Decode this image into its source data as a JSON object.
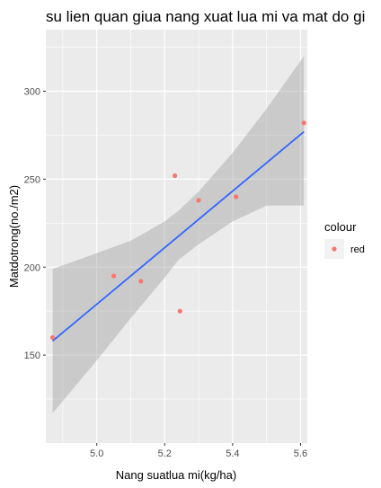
{
  "chart_data": {
    "type": "scatter",
    "title": "su lien quan giua nang xuat lua mi va mat do gi",
    "xlabel": "Nang suatlua mi(kg/ha)",
    "ylabel": "Matdotrong(no./m2)",
    "xlim": [
      4.85,
      5.62
    ],
    "ylim": [
      100,
      335
    ],
    "x_ticks": [
      5.0,
      5.2,
      5.4,
      5.6
    ],
    "x_tick_labels": [
      "5.0",
      "5.2",
      "5.4",
      "5.6"
    ],
    "y_ticks": [
      150,
      200,
      250,
      300
    ],
    "y_tick_labels": [
      "150",
      "200",
      "250",
      "300"
    ],
    "grid": true,
    "points": [
      {
        "x": 4.87,
        "y": 160
      },
      {
        "x": 5.05,
        "y": 195
      },
      {
        "x": 5.13,
        "y": 192
      },
      {
        "x": 5.23,
        "y": 252
      },
      {
        "x": 5.245,
        "y": 175
      },
      {
        "x": 5.3,
        "y": 238
      },
      {
        "x": 5.41,
        "y": 240
      },
      {
        "x": 5.61,
        "y": 282
      }
    ],
    "fit": {
      "method": "lm",
      "x": [
        4.87,
        5.61
      ],
      "y": [
        158,
        277
      ],
      "band_x": [
        4.87,
        5.0,
        5.1,
        5.2,
        5.24,
        5.3,
        5.4,
        5.5,
        5.61
      ],
      "band_lower": [
        117,
        147,
        171,
        194,
        204,
        213,
        226,
        235,
        235
      ],
      "band_upper": [
        199,
        208,
        215,
        226,
        232,
        243,
        265,
        290,
        320
      ]
    },
    "legend": {
      "title": "colour",
      "entries": [
        {
          "label": "red",
          "color": "#F8766D"
        }
      ],
      "position": "right"
    },
    "colors": {
      "panel": "#EBEBEB",
      "grid_major": "#FFFFFF",
      "point": "#F8766D",
      "line": "#3366FF",
      "band": "#999999",
      "tick_text": "#4D4D4D"
    }
  }
}
